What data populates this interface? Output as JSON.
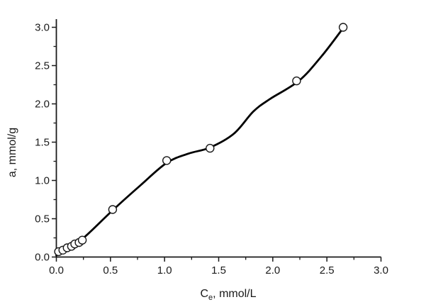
{
  "chart_data": {
    "type": "scatter",
    "title": "",
    "ylabel": "a, mmol/g",
    "xlabel_parts": {
      "main": "C",
      "sub": "e",
      "rest": ", mmol/L"
    },
    "xlabel_plain": "Ce, mmol/L",
    "xlim": [
      0,
      3.1
    ],
    "ylim": [
      0,
      3.1
    ],
    "grid": false,
    "legend": null,
    "x_major_ticks": [
      0.0,
      0.5,
      1.0,
      1.5,
      2.0,
      2.5,
      3.0
    ],
    "x_tick_labels": [
      "0.0",
      "0.5",
      "1.0",
      "1.5",
      "2.0",
      "2.5",
      "3.0"
    ],
    "x_minor_ticks": [
      0.25,
      0.75,
      1.25,
      1.75,
      2.25,
      2.75
    ],
    "y_major_ticks": [
      0.0,
      0.5,
      1.0,
      1.5,
      2.0,
      2.5,
      3.0
    ],
    "y_tick_labels": [
      "0.0",
      "0.5",
      "1.0",
      "1.5",
      "2.0",
      "2.5",
      "3.0"
    ],
    "y_minor_ticks": [
      0.25,
      0.75,
      1.25,
      1.75,
      2.25,
      2.75
    ],
    "series": [
      {
        "name": "experimental-points",
        "type": "scatter",
        "marker": "open-circle",
        "points": [
          [
            0.02,
            0.07
          ],
          [
            0.06,
            0.09
          ],
          [
            0.1,
            0.12
          ],
          [
            0.14,
            0.14
          ],
          [
            0.17,
            0.17
          ],
          [
            0.21,
            0.19
          ],
          [
            0.24,
            0.22
          ],
          [
            0.52,
            0.62
          ],
          [
            1.02,
            1.26
          ],
          [
            1.42,
            1.42
          ],
          [
            2.22,
            2.3
          ],
          [
            2.65,
            3.0
          ]
        ]
      },
      {
        "name": "fitted-curve",
        "type": "line",
        "points": [
          [
            0.0,
            0.02
          ],
          [
            0.13,
            0.13
          ],
          [
            0.26,
            0.26
          ],
          [
            0.52,
            0.61
          ],
          [
            0.78,
            0.94
          ],
          [
            1.02,
            1.23
          ],
          [
            1.22,
            1.35
          ],
          [
            1.42,
            1.43
          ],
          [
            1.64,
            1.61
          ],
          [
            1.82,
            1.9
          ],
          [
            1.97,
            2.06
          ],
          [
            2.24,
            2.3
          ],
          [
            2.45,
            2.62
          ],
          [
            2.65,
            2.99
          ]
        ]
      }
    ],
    "colors": {
      "axis": "#1a1a1a",
      "text": "#1a1a1a",
      "curve": "#000000",
      "marker_fill": "#ffffff",
      "marker_stroke": "#1a1a1a",
      "background": "#ffffff"
    }
  }
}
